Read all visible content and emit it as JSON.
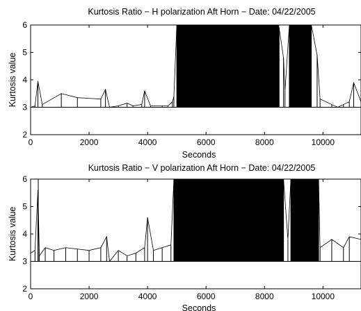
{
  "chart_data": [
    {
      "type": "line",
      "title": "Kurtosis Ratio − H polarization Aft Horn − Date: 04/22/2005",
      "xlabel": "Seconds",
      "ylabel": "Kurtosis value",
      "xlim": [
        0,
        11300
      ],
      "ylim": [
        2,
        6
      ],
      "xticks": [
        0,
        2000,
        4000,
        6000,
        8000,
        10000
      ],
      "yticks": [
        2,
        3,
        4,
        5,
        6
      ],
      "grid": false,
      "color": "#000000",
      "series": [
        {
          "baseline": 3.0,
          "x": [
            0,
            150,
            250,
            400,
            1050,
            1600,
            2400,
            2560,
            2700,
            3000,
            3300,
            3500,
            3800,
            3900,
            4100,
            4500,
            4700,
            4850,
            4900,
            5000,
            5200,
            5500,
            5800,
            6000,
            6300,
            6600,
            7000,
            7300,
            7600,
            7900,
            8200,
            8500,
            8650,
            8700,
            8850,
            9000,
            9300,
            9600,
            9800,
            9900,
            10300,
            10500,
            10700,
            10900,
            11050,
            11300
          ],
          "y": [
            3.0,
            3.05,
            3.95,
            3.1,
            3.5,
            3.35,
            3.3,
            3.65,
            3.0,
            3.05,
            3.15,
            3.05,
            3.1,
            3.6,
            3.05,
            3.05,
            3.05,
            3.2,
            3.4,
            6.0,
            5.5,
            6.0,
            5.8,
            5.5,
            6.0,
            5.3,
            5.6,
            6.0,
            5.7,
            5.4,
            6.0,
            5.9,
            4.8,
            3.6,
            6.0,
            5.8,
            5.2,
            6.0,
            4.9,
            3.3,
            3.1,
            3.0,
            3.1,
            3.2,
            3.9,
            3.2
          ]
        }
      ]
    },
    {
      "type": "line",
      "title": "Kurtosis Ratio − V polarization Aft Horn − Date: 04/22/2005",
      "xlabel": "Seconds",
      "ylabel": "Kurtosis value",
      "xlim": [
        0,
        11300
      ],
      "ylim": [
        2,
        6
      ],
      "xticks": [
        0,
        2000,
        4000,
        6000,
        8000,
        10000
      ],
      "yticks": [
        2,
        3,
        4,
        5,
        6
      ],
      "grid": false,
      "color": "#000000",
      "series": [
        {
          "baseline": 3.0,
          "x": [
            0,
            150,
            250,
            300,
            500,
            800,
            1200,
            1600,
            2000,
            2400,
            2600,
            2700,
            3000,
            3300,
            3600,
            3900,
            4000,
            4200,
            4500,
            4800,
            4900,
            5000,
            5500,
            6000,
            6500,
            7000,
            7500,
            8000,
            8500,
            8650,
            8800,
            8900,
            9300,
            9700,
            9850,
            9900,
            10300,
            10700,
            10900,
            11300
          ],
          "y": [
            3.3,
            3.4,
            5.6,
            3.2,
            3.5,
            3.4,
            3.5,
            3.45,
            3.4,
            3.5,
            3.9,
            3.0,
            3.4,
            3.2,
            3.3,
            3.5,
            4.6,
            3.4,
            3.5,
            3.6,
            6.0,
            6.0,
            6.0,
            6.0,
            6.0,
            6.0,
            6.0,
            6.0,
            6.0,
            6.0,
            3.8,
            6.0,
            6.0,
            6.0,
            6.0,
            3.5,
            3.8,
            3.5,
            3.9,
            3.8
          ]
        }
      ]
    }
  ]
}
